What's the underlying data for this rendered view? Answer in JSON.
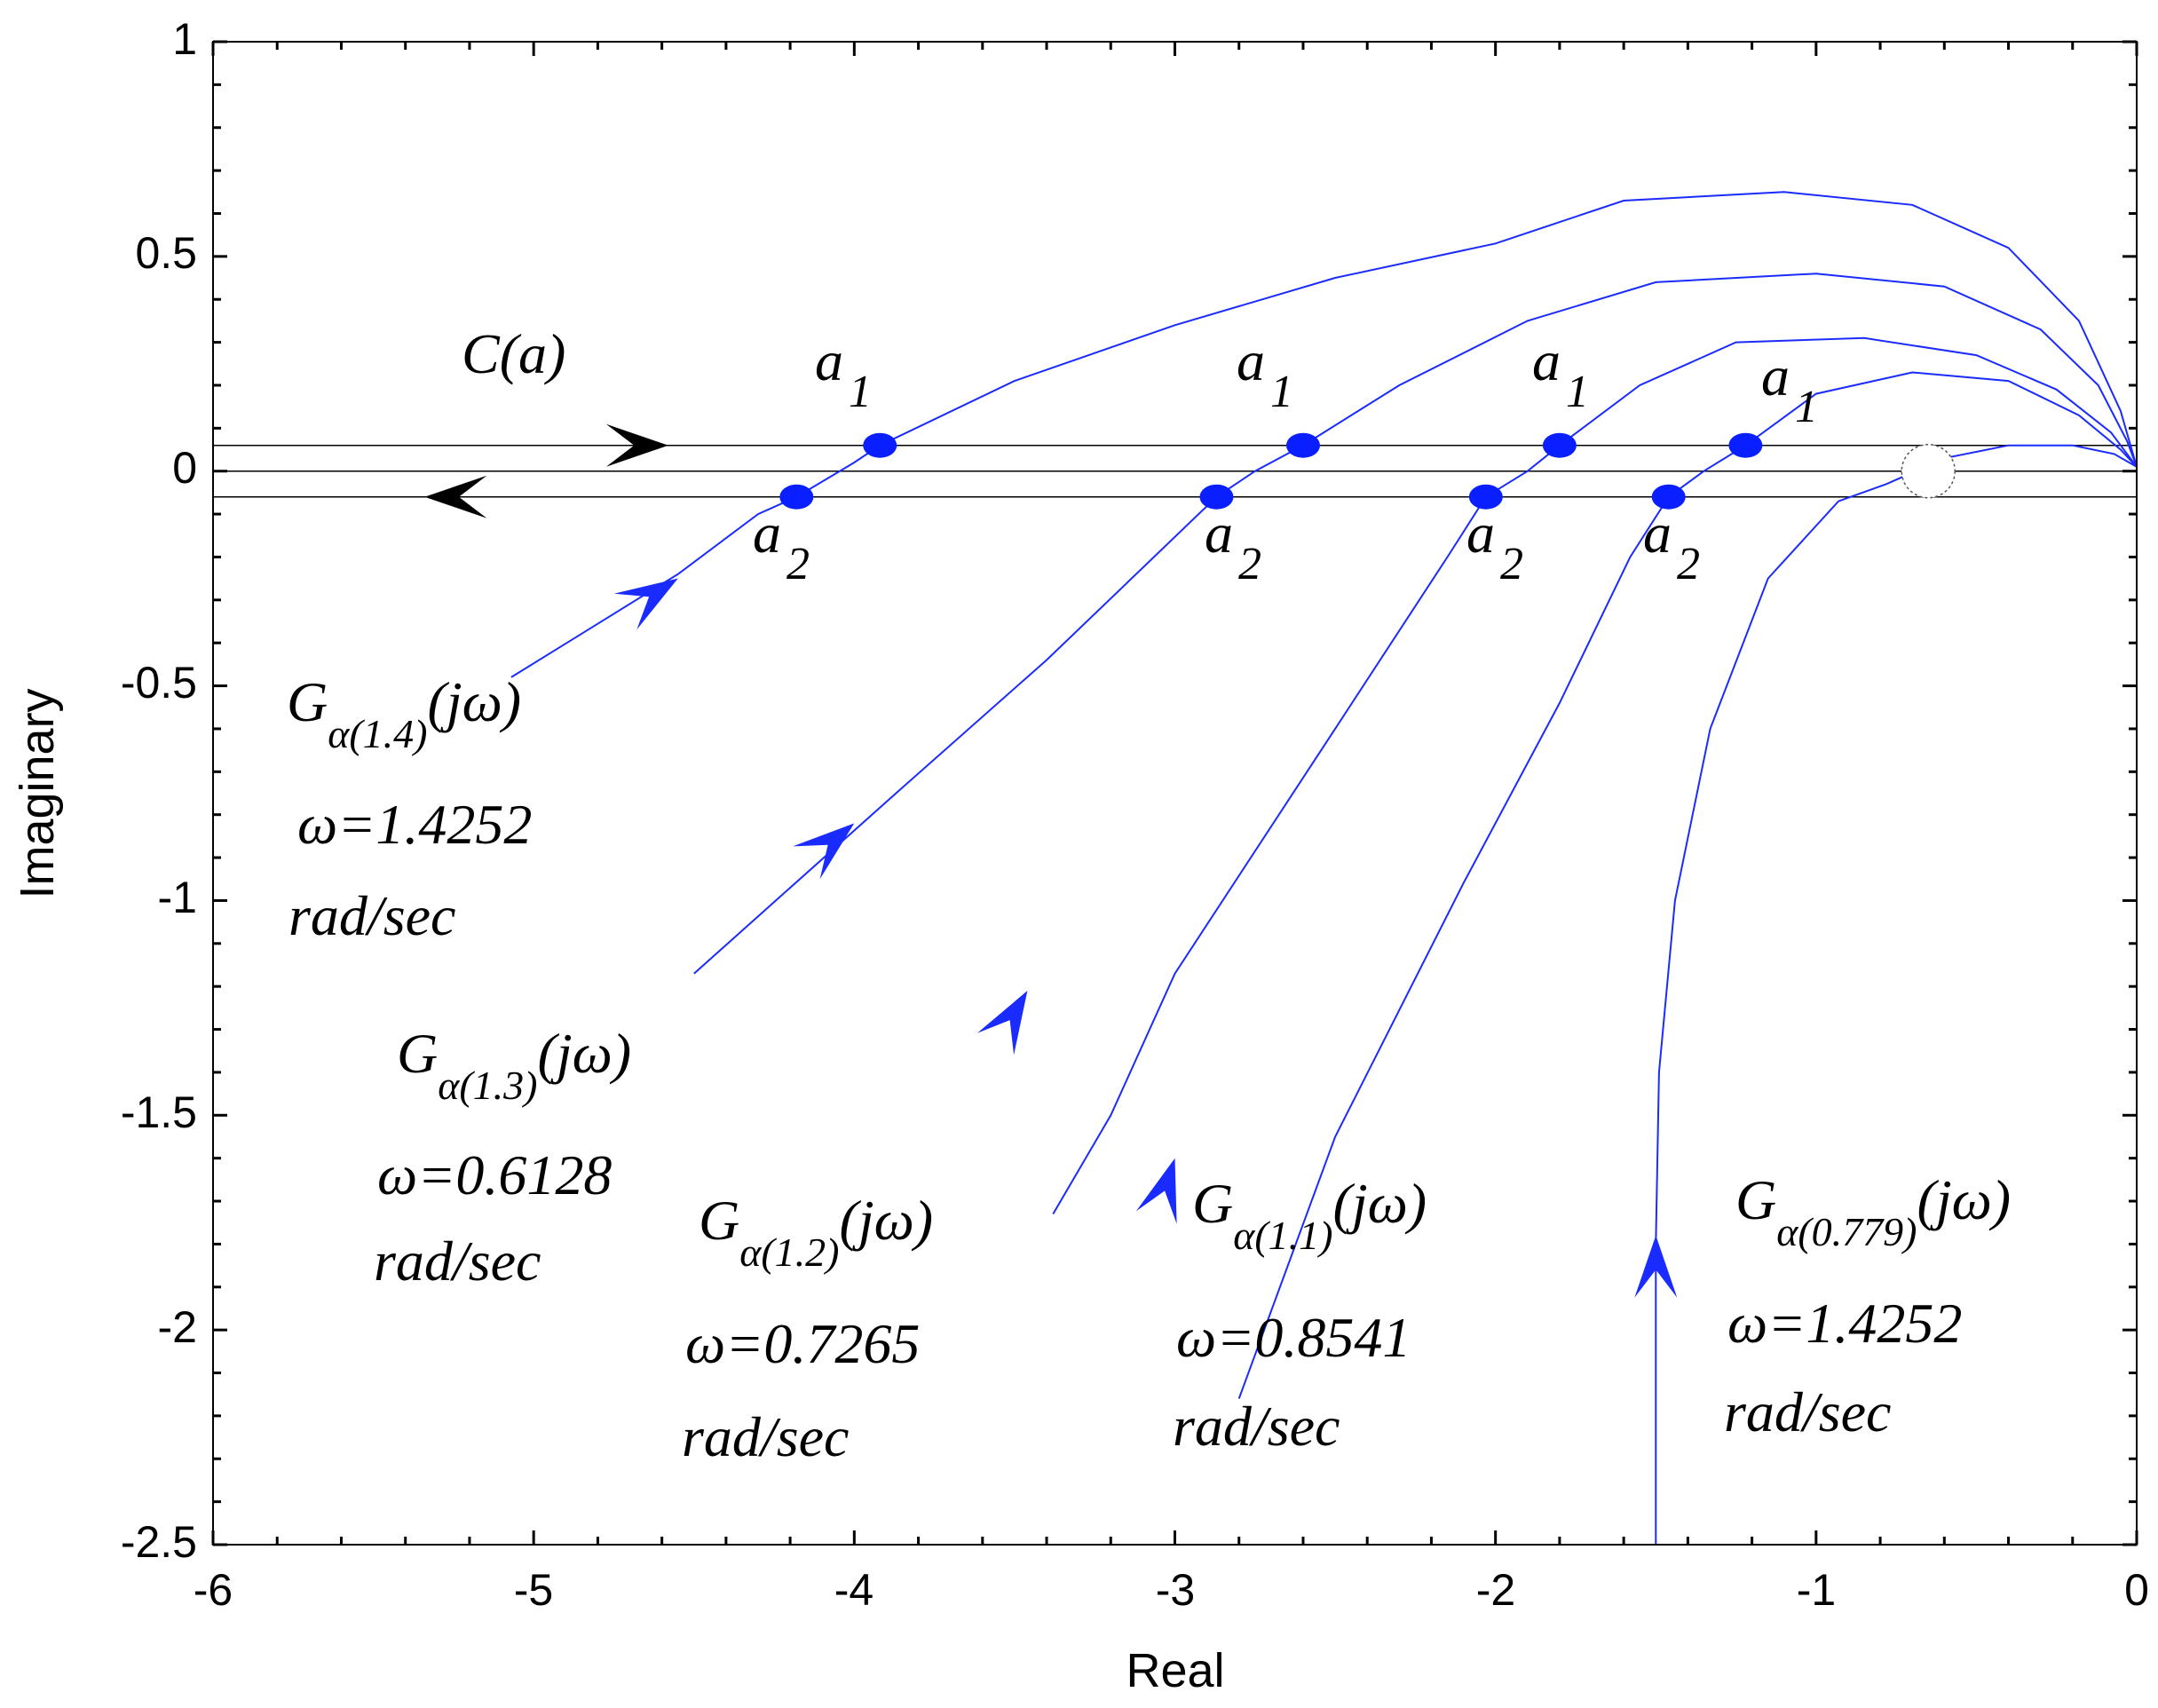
{
  "chart_data": {
    "type": "line",
    "title": "",
    "xlabel": "Real",
    "ylabel": "Imaginary",
    "xlim": [
      -6,
      0
    ],
    "ylim": [
      -2.5,
      1
    ],
    "grid": false,
    "x_ticks": [
      -6,
      -5,
      -4,
      -3,
      -2,
      -1,
      0
    ],
    "x_tick_labels": [
      "-6",
      "-5",
      "-4",
      "-3",
      "-2",
      "-1",
      "0"
    ],
    "y_ticks": [
      1,
      0.5,
      0,
      -0.5,
      -1,
      -1.5,
      -2,
      -2.5
    ],
    "y_tick_labels": [
      "1",
      "0.5",
      "0",
      "-0.5",
      "-1",
      "-1.5",
      "-2",
      "-2.5"
    ],
    "reference_lines": [
      {
        "name": "c-upper",
        "y": 0.06
      },
      {
        "name": "c-axis",
        "y": 0
      },
      {
        "name": "c-lower",
        "y": -0.06
      }
    ],
    "series": [
      {
        "name": "G_alpha(1.4)",
        "color": "#1a2bff",
        "points": [
          [
            -5.07,
            -0.48
          ],
          [
            -4.55,
            -0.24
          ],
          [
            -4.3,
            -0.1
          ],
          [
            -4.18,
            -0.06
          ],
          [
            -4.0,
            0.02
          ],
          [
            -3.92,
            0.06
          ],
          [
            -3.5,
            0.21
          ],
          [
            -3.0,
            0.34
          ],
          [
            -2.5,
            0.45
          ],
          [
            -2.0,
            0.53
          ],
          [
            -1.6,
            0.63
          ],
          [
            -1.1,
            0.65
          ],
          [
            -0.7,
            0.62
          ],
          [
            -0.4,
            0.52
          ],
          [
            -0.18,
            0.35
          ],
          [
            -0.05,
            0.14
          ],
          [
            0,
            0.01
          ]
        ]
      },
      {
        "name": "G_alpha(1.3)",
        "color": "#1a2bff",
        "points": [
          [
            -4.5,
            -1.17
          ],
          [
            -3.9,
            -0.77
          ],
          [
            -3.4,
            -0.44
          ],
          [
            -2.87,
            -0.06
          ],
          [
            -2.75,
            0.0
          ],
          [
            -2.6,
            0.06
          ],
          [
            -2.3,
            0.2
          ],
          [
            -1.9,
            0.35
          ],
          [
            -1.5,
            0.44
          ],
          [
            -1.0,
            0.46
          ],
          [
            -0.6,
            0.43
          ],
          [
            -0.3,
            0.33
          ],
          [
            -0.12,
            0.2
          ],
          [
            -0.03,
            0.07
          ],
          [
            0,
            0.01
          ]
        ]
      },
      {
        "name": "G_alpha(1.2)",
        "color": "#1a2bff",
        "points": [
          [
            -3.38,
            -1.73
          ],
          [
            -3.2,
            -1.5
          ],
          [
            -3.0,
            -1.17
          ],
          [
            -2.5,
            -0.6
          ],
          [
            -2.15,
            -0.2
          ],
          [
            -2.03,
            -0.06
          ],
          [
            -1.9,
            0.0
          ],
          [
            -1.8,
            0.06
          ],
          [
            -1.55,
            0.2
          ],
          [
            -1.25,
            0.3
          ],
          [
            -0.85,
            0.31
          ],
          [
            -0.5,
            0.27
          ],
          [
            -0.25,
            0.19
          ],
          [
            -0.08,
            0.09
          ],
          [
            0,
            0.01
          ]
        ]
      },
      {
        "name": "G_alpha(1.1)",
        "color": "#1a2bff",
        "points": [
          [
            -2.8,
            -2.16
          ],
          [
            -2.5,
            -1.55
          ],
          [
            -2.1,
            -0.96
          ],
          [
            -1.8,
            -0.54
          ],
          [
            -1.58,
            -0.2
          ],
          [
            -1.46,
            -0.06
          ],
          [
            -1.35,
            0.0
          ],
          [
            -1.22,
            0.06
          ],
          [
            -1.0,
            0.18
          ],
          [
            -0.7,
            0.23
          ],
          [
            -0.4,
            0.21
          ],
          [
            -0.18,
            0.13
          ],
          [
            -0.05,
            0.05
          ],
          [
            0,
            0.01
          ]
        ]
      },
      {
        "name": "G_alpha(0.779)",
        "color": "#1a2bff",
        "points": [
          [
            -1.5,
            -2.5
          ],
          [
            -1.5,
            -1.8
          ],
          [
            -1.49,
            -1.4
          ],
          [
            -1.44,
            -1.0
          ],
          [
            -1.33,
            -0.6
          ],
          [
            -1.15,
            -0.25
          ],
          [
            -0.93,
            -0.07
          ],
          [
            -0.78,
            -0.03
          ],
          [
            -0.6,
            0.03
          ],
          [
            -0.4,
            0.06
          ],
          [
            -0.2,
            0.06
          ],
          [
            -0.07,
            0.04
          ],
          [
            0,
            0.01
          ]
        ]
      }
    ],
    "direction_arrows": [
      {
        "series": "G_alpha(1.4)",
        "at": [
          -4.55,
          -0.25
        ],
        "from": [
          -4.72,
          -0.33
        ]
      },
      {
        "series": "G_alpha(1.3)",
        "at": [
          -4.0,
          -0.82
        ],
        "from": [
          -4.13,
          -0.9
        ]
      },
      {
        "series": "G_alpha(1.2)",
        "at": [
          -3.46,
          -1.21
        ],
        "from": [
          -3.54,
          -1.31
        ]
      },
      {
        "series": "G_alpha(1.1)",
        "at": [
          -3.0,
          -1.6
        ],
        "from": [
          -3.05,
          -1.72
        ]
      },
      {
        "series": "G_alpha(0.779)",
        "at": [
          -1.5,
          -1.78
        ],
        "from": [
          -1.5,
          -1.92
        ]
      }
    ],
    "c_arrows": [
      {
        "at": [
          -4.58,
          0.06
        ],
        "from": [
          -4.79,
          0.06
        ]
      },
      {
        "at": [
          -5.34,
          -0.06
        ],
        "from": [
          -5.13,
          -0.06
        ]
      }
    ],
    "intersections": [
      {
        "label": "a",
        "index": "1",
        "x": -3.92,
        "y": 0.06
      },
      {
        "label": "a",
        "index": "2",
        "x": -4.18,
        "y": -0.06
      },
      {
        "label": "a",
        "index": "1",
        "x": -2.6,
        "y": 0.06
      },
      {
        "label": "a",
        "index": "2",
        "x": -2.87,
        "y": -0.06
      },
      {
        "label": "a",
        "index": "1",
        "x": -1.8,
        "y": 0.06
      },
      {
        "label": "a",
        "index": "2",
        "x": -2.03,
        "y": -0.06
      },
      {
        "label": "a",
        "index": "1",
        "x": -1.22,
        "y": 0.06
      },
      {
        "label": "a",
        "index": "2",
        "x": -1.46,
        "y": -0.06
      }
    ],
    "open_circle": {
      "x": -0.65,
      "y": 0.0
    },
    "annotations": {
      "c_label": "C(a)",
      "g14": {
        "base": "G",
        "sub": "α(1.4)",
        "tail": "(jω)",
        "omega": "ω=1.4252",
        "unit": "rad/sec"
      },
      "g13": {
        "base": "G",
        "sub": "α(1.3)",
        "tail": "(jω)",
        "omega": "ω=0.6128",
        "unit": "rad/sec"
      },
      "g12": {
        "base": "G",
        "sub": "α(1.2)",
        "tail": "(jω)",
        "omega": "ω=0.7265",
        "unit": "rad/sec"
      },
      "g11": {
        "base": "G",
        "sub": "α(1.1)",
        "tail": "(jω)",
        "omega": "ω=0.8541",
        "unit": "rad/sec"
      },
      "g0779": {
        "base": "G",
        "sub": "α(0.779)",
        "tail": "(jω)",
        "omega": "ω=1.4252",
        "unit": "rad/sec"
      }
    }
  }
}
